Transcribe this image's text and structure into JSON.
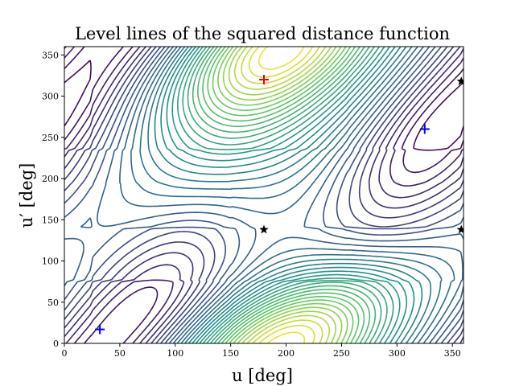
{
  "chart_data": {
    "type": "contour",
    "title": "Level lines of the squared distance function",
    "xlabel": "u [deg]",
    "ylabel": "u′ [deg]",
    "xlim": [
      0,
      360
    ],
    "ylim": [
      0,
      360
    ],
    "xticks": [
      "0",
      "50",
      "100",
      "150",
      "200",
      "250",
      "300",
      "350"
    ],
    "yticks": [
      "0",
      "50",
      "100",
      "150",
      "200",
      "250",
      "300",
      "350"
    ],
    "grid": false,
    "colormap": [
      "#440154",
      "#3b528b",
      "#21918c",
      "#5ec962",
      "#fde725"
    ],
    "maxima": [
      [
        180,
        320
      ],
      [
        205,
        15
      ]
    ],
    "minima": [
      [
        75,
        55
      ],
      [
        330,
        255
      ]
    ],
    "saddles": [
      [
        180,
        138
      ],
      [
        358,
        138
      ],
      [
        358,
        318
      ]
    ],
    "markers": [
      {
        "label": "blue-plus",
        "color": "#0000ff",
        "symbol": "+",
        "points": [
          [
            32,
            17
          ],
          [
            325,
            260
          ],
          [
            180,
            320
          ]
        ]
      },
      {
        "label": "red-plus",
        "color": "#ff0000",
        "symbol": "+",
        "points": [
          [
            180,
            320
          ]
        ]
      },
      {
        "label": "black-star",
        "color": "#000000",
        "symbol": "star",
        "points": [
          [
            180,
            138
          ],
          [
            358,
            138
          ],
          [
            358,
            318
          ]
        ]
      }
    ]
  }
}
